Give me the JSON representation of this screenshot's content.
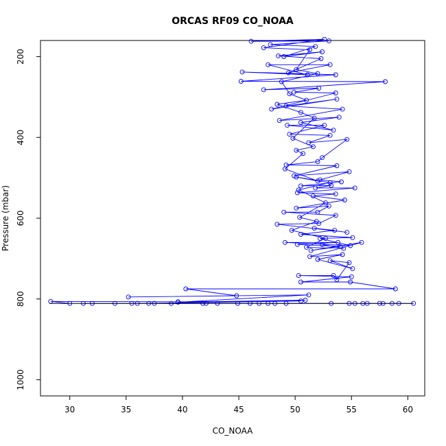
{
  "chart_data": {
    "type": "line",
    "title": "ORCAS RF09 CO_NOAA",
    "xlabel": "CO_NOAA",
    "ylabel": "Pressure (mbar)",
    "xlim": [
      27.4,
      61.5
    ],
    "ylim": [
      1040,
      160
    ],
    "y_reversed": true,
    "x_ticks": [
      30,
      35,
      40,
      45,
      50,
      55,
      60
    ],
    "x_tick_labels": [
      "30",
      "35",
      "40",
      "45",
      "50",
      "55",
      "60"
    ],
    "y_ticks": [
      200,
      400,
      600,
      800,
      1000
    ],
    "y_tick_labels": [
      "200",
      "400",
      "600",
      "800",
      "1000"
    ],
    "grid": false,
    "legend": "none",
    "series": [
      {
        "color": "#0000ff",
        "marker": "open-circle",
        "points": [
          [
            30.0,
            811
          ],
          [
            28.3,
            806
          ],
          [
            39.6,
            807
          ],
          [
            50.5,
            805
          ],
          [
            36.0,
            811
          ],
          [
            49.2,
            811
          ],
          [
            39.0,
            811
          ],
          [
            56.0,
            811
          ],
          [
            47.6,
            811
          ],
          [
            60.5,
            811
          ],
          [
            32.0,
            811
          ],
          [
            58.6,
            811
          ],
          [
            44.9,
            811
          ],
          [
            57.5,
            811
          ],
          [
            42.1,
            811
          ],
          [
            54.8,
            811
          ],
          [
            35.5,
            811
          ],
          [
            48.2,
            811
          ],
          [
            37.0,
            811
          ],
          [
            53.2,
            811
          ],
          [
            41.8,
            811
          ],
          [
            46.8,
            811
          ],
          [
            31.2,
            811
          ],
          [
            59.2,
            811
          ],
          [
            43.1,
            811
          ],
          [
            55.3,
            811
          ],
          [
            34.0,
            811
          ],
          [
            57.8,
            811
          ],
          [
            46.0,
            811
          ],
          [
            56.4,
            811
          ],
          [
            37.5,
            811
          ],
          [
            50.9,
            803
          ],
          [
            39.6,
            808
          ],
          [
            51.2,
            790
          ],
          [
            35.2,
            795
          ],
          [
            44.8,
            792
          ],
          [
            40.3,
            775
          ],
          [
            58.9,
            775
          ],
          [
            54.9,
            758
          ],
          [
            50.5,
            758
          ],
          [
            55.0,
            745
          ],
          [
            50.3,
            742
          ],
          [
            53.4,
            742
          ],
          [
            53.7,
            752
          ],
          [
            54.8,
            710
          ],
          [
            53.1,
            705
          ],
          [
            55.1,
            725
          ],
          [
            52.0,
            702
          ],
          [
            54.2,
            690
          ],
          [
            51.3,
            695
          ],
          [
            55.9,
            660
          ],
          [
            51.4,
            680
          ],
          [
            54.0,
            670
          ],
          [
            50.2,
            665
          ],
          [
            53.8,
            660
          ],
          [
            49.1,
            660
          ],
          [
            54.9,
            668
          ],
          [
            52.2,
            650
          ],
          [
            55.1,
            648
          ],
          [
            50.5,
            640
          ],
          [
            53.5,
            630
          ],
          [
            51.7,
            625
          ],
          [
            54.6,
            635
          ],
          [
            48.4,
            615
          ],
          [
            52.1,
            613
          ],
          [
            53.6,
            593
          ],
          [
            49.0,
            585
          ],
          [
            52.0,
            585
          ],
          [
            53.0,
            570
          ],
          [
            50.1,
            575
          ],
          [
            54.4,
            555
          ],
          [
            51.6,
            545
          ],
          [
            53.6,
            540
          ],
          [
            50.2,
            537
          ],
          [
            55.3,
            525
          ],
          [
            51.8,
            525
          ],
          [
            53.2,
            519
          ],
          [
            50.5,
            520
          ],
          [
            54.1,
            510
          ],
          [
            52.2,
            505
          ],
          [
            54.8,
            485
          ],
          [
            49.9,
            495
          ],
          [
            53.7,
            470
          ],
          [
            49.2,
            468
          ],
          [
            52.0,
            460
          ],
          [
            52.4,
            450
          ],
          [
            54.6,
            405
          ],
          [
            51.2,
            413
          ],
          [
            53.1,
            395
          ],
          [
            49.5,
            392
          ],
          [
            52.6,
            370
          ],
          [
            49.3,
            370
          ],
          [
            53.4,
            382
          ],
          [
            50.5,
            363
          ],
          [
            53.9,
            350
          ],
          [
            48.6,
            358
          ],
          [
            54.2,
            330
          ],
          [
            49.2,
            322
          ],
          [
            53.7,
            305
          ],
          [
            47.9,
            330
          ],
          [
            53.6,
            290
          ],
          [
            49.9,
            288
          ],
          [
            52.1,
            278
          ],
          [
            47.2,
            282
          ],
          [
            58.0,
            262
          ],
          [
            45.2,
            261
          ],
          [
            53.6,
            245
          ],
          [
            45.3,
            238
          ],
          [
            51.1,
            245
          ],
          [
            47.6,
            220
          ],
          [
            53.1,
            220
          ],
          [
            49.4,
            240
          ],
          [
            52.3,
            205
          ],
          [
            48.5,
            198
          ],
          [
            52.4,
            188
          ],
          [
            49.0,
            200
          ],
          [
            51.8,
            175
          ],
          [
            47.8,
            170
          ],
          [
            53.0,
            161
          ],
          [
            46.1,
            162
          ],
          [
            52.6,
            157
          ],
          [
            47.2,
            178
          ],
          [
            51.3,
            183
          ],
          [
            50.1,
            232
          ],
          [
            52.0,
            242
          ],
          [
            48.8,
            262
          ],
          [
            49.5,
            292
          ],
          [
            51.0,
            308
          ],
          [
            48.4,
            318
          ],
          [
            50.5,
            338
          ],
          [
            51.7,
            352
          ],
          [
            49.8,
            402
          ],
          [
            51.6,
            423
          ],
          [
            50.1,
            432
          ],
          [
            50.7,
            440
          ],
          [
            49.1,
            478
          ],
          [
            52.0,
            508
          ],
          [
            50.1,
            498
          ],
          [
            53.1,
            512
          ],
          [
            50.3,
            530
          ],
          [
            52.7,
            562
          ],
          [
            50.4,
            598
          ],
          [
            51.9,
            608
          ],
          [
            49.7,
            630
          ],
          [
            52.7,
            650
          ],
          [
            51.0,
            672
          ],
          [
            54.3,
            675
          ],
          [
            52.4,
            665
          ]
        ]
      }
    ]
  }
}
